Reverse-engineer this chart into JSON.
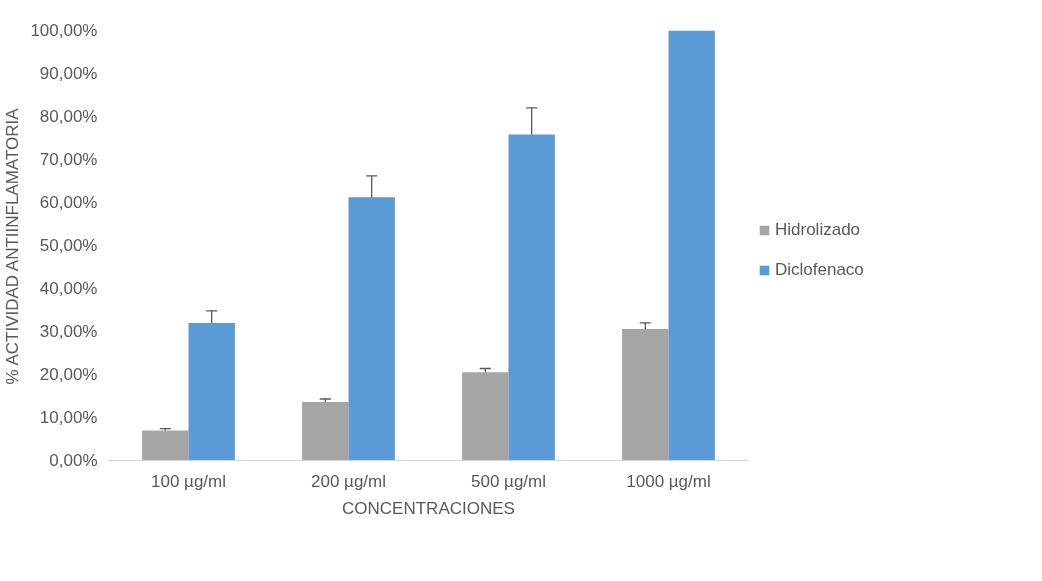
{
  "chart_data": {
    "type": "bar",
    "xlabel": "CONCENTRACIONES",
    "ylabel": "% ACTIVIDAD ANTIINFLAMATORIA",
    "categories": [
      "100 µg/ml",
      "200 µg/ml",
      "500 µg/ml",
      "1000 µg/ml"
    ],
    "series": [
      {
        "name": "Hidrolizado",
        "color": "#a5a5a5",
        "values": [
          7.0,
          13.6,
          20.5,
          30.6
        ],
        "errors": [
          [
            7.0,
            7.4
          ],
          [
            13.6,
            14.3
          ],
          [
            20.5,
            21.4
          ],
          [
            30.6,
            32.0
          ]
        ]
      },
      {
        "name": "Diclofenaco",
        "color": "#5b9bd5",
        "values": [
          32.0,
          61.2,
          75.8,
          100
        ],
        "errors": [
          [
            32.0,
            34.8
          ],
          [
            61.2,
            66.2
          ],
          [
            75.8,
            82.0
          ],
          null
        ]
      }
    ],
    "ylim": [
      0,
      100
    ],
    "yticks": [
      {
        "value": 0,
        "label": "0,00%"
      },
      {
        "value": 10,
        "label": "10,00%"
      },
      {
        "value": 20,
        "label": "20,00%"
      },
      {
        "value": 30,
        "label": "30,00%"
      },
      {
        "value": 40,
        "label": "40,00%"
      },
      {
        "value": 50,
        "label": "50,00%"
      },
      {
        "value": 60,
        "label": "60,00%"
      },
      {
        "value": 70,
        "label": "70,00%"
      },
      {
        "value": 80,
        "label": "80,00%"
      },
      {
        "value": 90,
        "label": "90,00%"
      },
      {
        "value": 100,
        "label": "100,00%"
      }
    ],
    "grid": false,
    "legend": "right"
  }
}
